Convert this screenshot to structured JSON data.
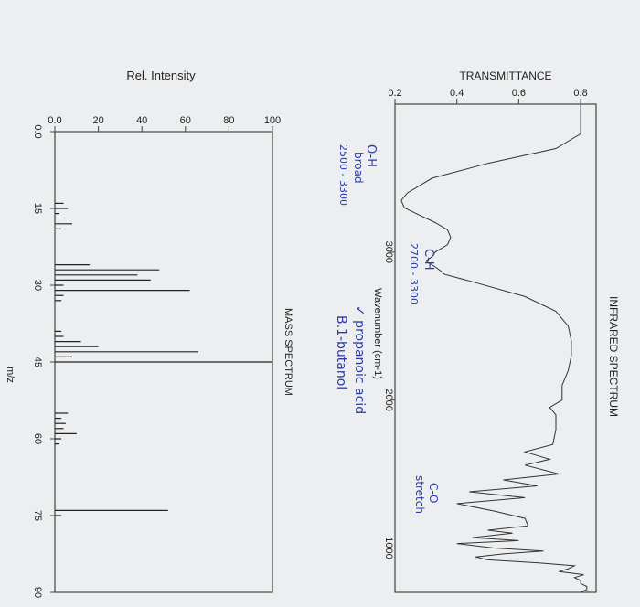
{
  "ir": {
    "title": "INFRARED SPECTRUM",
    "ylabel": "TRANSMITTANCE",
    "xlabel": "Wavenumber (cm-1)",
    "xticks": [
      "3000",
      "2000",
      "1000"
    ],
    "yticks": [
      "0.2",
      "0.4",
      "0.6",
      "0.8"
    ]
  },
  "ms": {
    "title": "MASS SPECTRUM",
    "ylabel": "Rel. Intensity",
    "xlabel": "m/z",
    "xticks": [
      "0.0",
      "15",
      "30",
      "45",
      "60",
      "75",
      "90"
    ],
    "yticks": [
      "0.0",
      "20",
      "40",
      "60",
      "80",
      "100"
    ]
  },
  "annotations": {
    "oh_label": "O-H",
    "oh_broad": "broad",
    "oh_range": "2500 - 3300",
    "ch_label": "C-H",
    "ch_range": "2700 - 3300",
    "answer_a": "✓ propanoic acid",
    "answer_b": "B.1-butanol",
    "co_label": "C-O",
    "co_stretch": "stretch"
  },
  "chart_data": [
    {
      "type": "line",
      "title": "INFRARED SPECTRUM",
      "xlabel": "Wavenumber (cm-1)",
      "ylabel": "TRANSMITTANCE",
      "xlim": [
        4000,
        700
      ],
      "ylim": [
        0.2,
        0.85
      ],
      "x": [
        4000,
        3900,
        3800,
        3700,
        3600,
        3500,
        3400,
        3350,
        3300,
        3250,
        3200,
        3150,
        3100,
        3050,
        3000,
        2970,
        2940,
        2900,
        2870,
        2850,
        2800,
        2700,
        2600,
        2500,
        2400,
        2300,
        2200,
        2100,
        2000,
        1950,
        1900,
        1800,
        1700,
        1650,
        1600,
        1560,
        1500,
        1460,
        1420,
        1380,
        1340,
        1300,
        1250,
        1200,
        1150,
        1120,
        1100,
        1070,
        1050,
        1030,
        1000,
        980,
        960,
        940,
        920,
        900,
        880,
        860,
        840,
        820,
        800,
        780,
        760,
        740,
        720,
        700
      ],
      "series": [
        {
          "values": [
            0.8,
            0.8,
            0.8,
            0.72,
            0.5,
            0.32,
            0.24,
            0.22,
            0.23,
            0.28,
            0.33,
            0.37,
            0.38,
            0.37,
            0.33,
            0.32,
            0.3,
            0.33,
            0.35,
            0.36,
            0.45,
            0.62,
            0.72,
            0.76,
            0.77,
            0.77,
            0.76,
            0.74,
            0.74,
            0.7,
            0.72,
            0.72,
            0.71,
            0.62,
            0.7,
            0.62,
            0.73,
            0.55,
            0.66,
            0.44,
            0.62,
            0.4,
            0.52,
            0.62,
            0.63,
            0.5,
            0.58,
            0.45,
            0.6,
            0.4,
            0.52,
            0.68,
            0.55,
            0.46,
            0.5,
            0.66,
            0.78,
            0.76,
            0.73,
            0.81,
            0.78,
            0.8,
            0.8,
            0.82,
            0.82,
            0.8
          ]
        }
      ]
    },
    {
      "type": "bar",
      "title": "MASS SPECTRUM",
      "xlabel": "m/z",
      "ylabel": "Rel. Intensity",
      "xlim": [
        0,
        90
      ],
      "ylim": [
        0,
        100
      ],
      "x": [
        14,
        15,
        16,
        18,
        19,
        26,
        27,
        28,
        29,
        30,
        31,
        32,
        33,
        39,
        40,
        41,
        42,
        43,
        44,
        45,
        55,
        56,
        57,
        58,
        59,
        60,
        61,
        74,
        75
      ],
      "values": [
        4,
        6,
        2,
        8,
        3,
        16,
        48,
        38,
        44,
        4,
        62,
        4,
        3,
        3,
        4,
        12,
        20,
        66,
        8,
        100,
        6,
        3,
        5,
        4,
        10,
        3,
        2,
        52,
        3
      ]
    }
  ]
}
